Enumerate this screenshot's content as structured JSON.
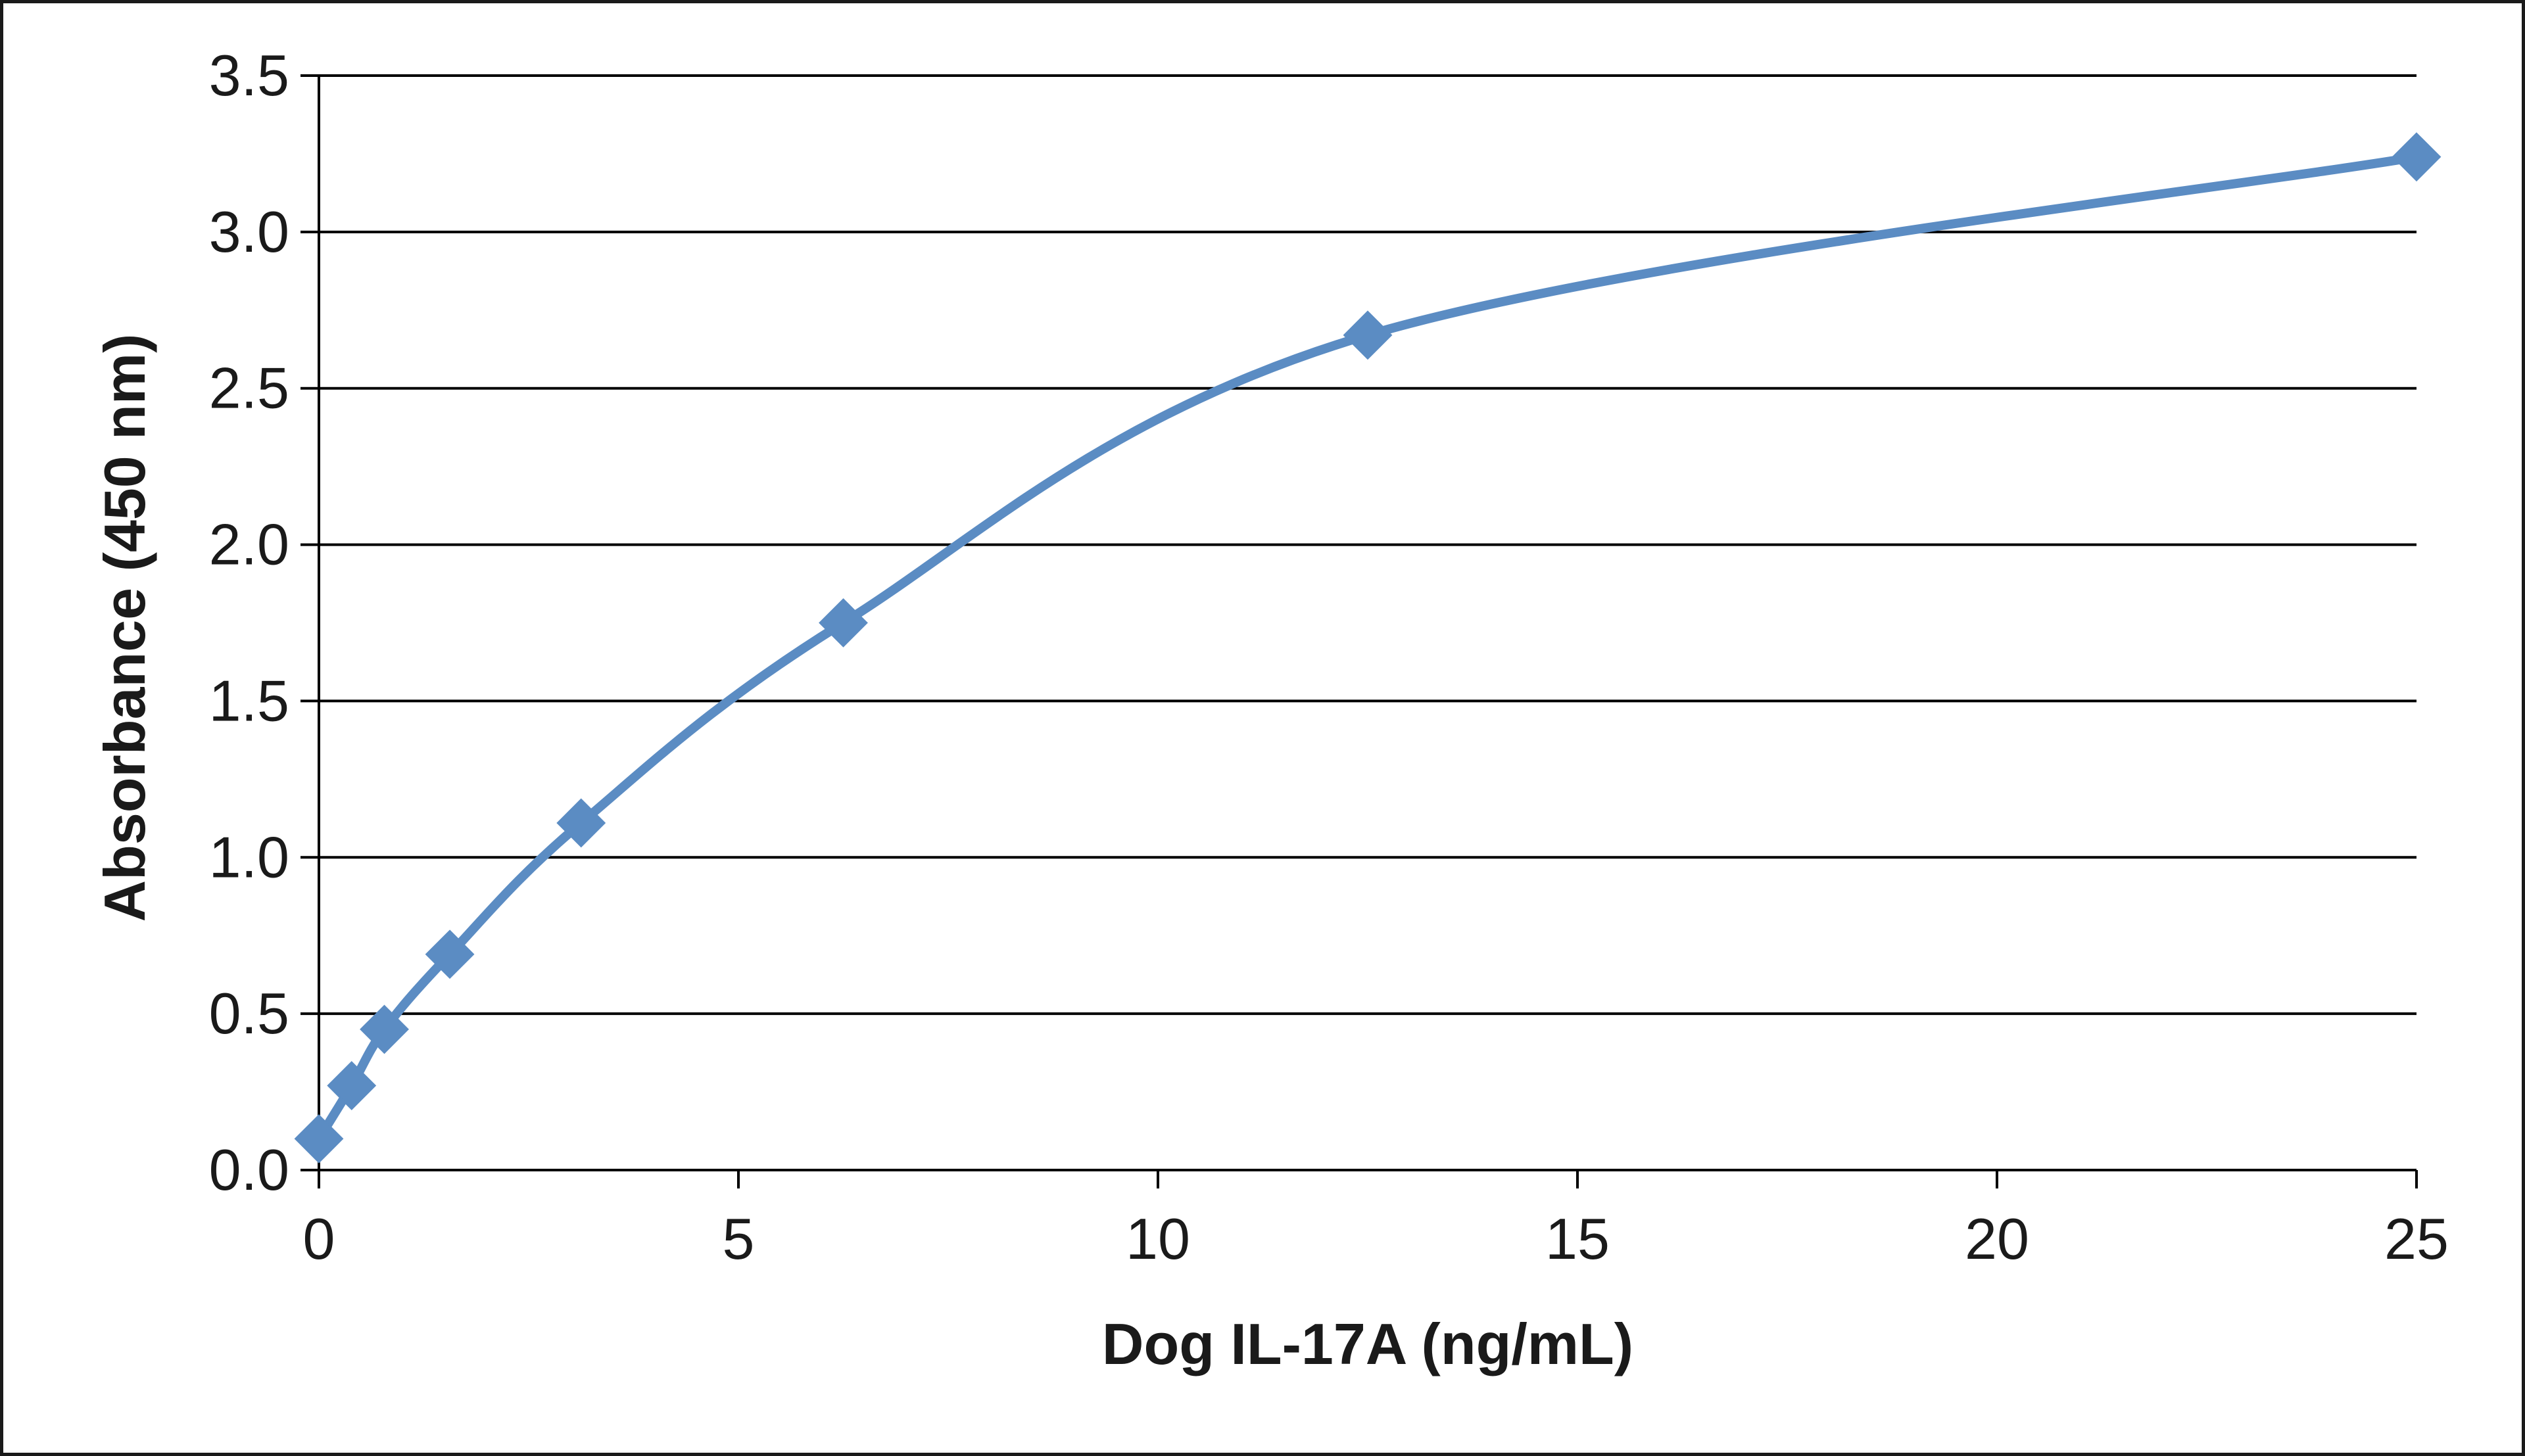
{
  "chart_data": {
    "type": "line",
    "title": "",
    "xlabel": "Dog IL-17A (ng/mL)",
    "ylabel": "Absorbance  (450  nm)",
    "xlim": [
      0,
      25
    ],
    "ylim": [
      0,
      3.5
    ],
    "x_ticks": [
      "0",
      "5",
      "10",
      "15",
      "20",
      "25"
    ],
    "y_ticks": [
      "0.0",
      "0.5",
      "1.0",
      "1.5",
      "2.0",
      "2.5",
      "3.0",
      "3.5"
    ],
    "grid": "horizontal",
    "legend": "none",
    "smooth": true,
    "marker": "diamond",
    "series": [
      {
        "color": "#5b8cc3",
        "x": [
          0,
          0.39,
          0.78,
          1.56,
          3.125,
          6.25,
          12.5,
          25
        ],
        "y": [
          0.1,
          0.27,
          0.45,
          0.69,
          1.11,
          1.75,
          2.67,
          3.24
        ]
      }
    ]
  }
}
